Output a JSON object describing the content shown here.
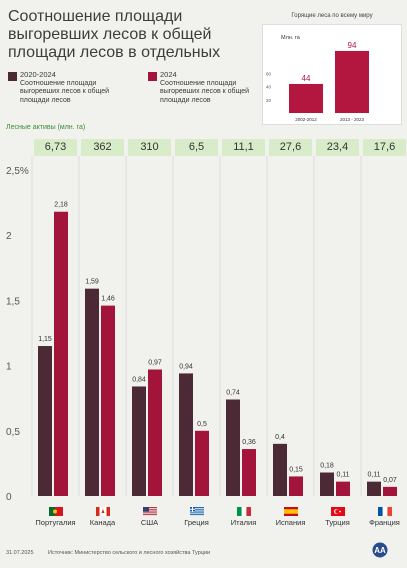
{
  "title": "Соотношение площади выгоревших лесов к общей площади лесов в отдельных",
  "legend": [
    {
      "name": "2020-2024",
      "desc": "Соотношение площади выгоревших лесов к общей площади лесов",
      "color": "#4b2a36"
    },
    {
      "name": "2024",
      "desc": "Соотношение площади выгоревших лесов к общей площади лесов",
      "color": "#a3143b"
    }
  ],
  "inset": {
    "title": "Горящие леса по всему миру",
    "unit": "Млн. га",
    "ticks": [
      "60",
      "40",
      "20"
    ],
    "categories": [
      "2002-2012",
      "2013 - 2023"
    ],
    "values": [
      44,
      94
    ],
    "value_labels": [
      "44",
      "94"
    ],
    "color": "#b3173f"
  },
  "assets": {
    "label": "Лесные активы (млн. га)",
    "values": [
      "6,73",
      "362",
      "310",
      "6,5",
      "11,1",
      "27,6",
      "23,4",
      "17,6"
    ]
  },
  "chart_data": {
    "type": "bar",
    "categories": [
      "Португалия",
      "Канада",
      "США",
      "Греция",
      "Италия",
      "Испания",
      "Турция",
      "Франция"
    ],
    "series": [
      {
        "name": "2020-2024",
        "values": [
          1.15,
          1.59,
          0.84,
          0.94,
          0.74,
          0.4,
          0.18,
          0.11
        ],
        "labels": [
          "1,15",
          "1,59",
          "0,84",
          "0,94",
          "0,74",
          "0,4",
          "0,18",
          "0,11"
        ],
        "color": "#4b2a36"
      },
      {
        "name": "2024",
        "values": [
          2.18,
          1.46,
          0.97,
          0.5,
          0.36,
          0.15,
          0.11,
          0.07
        ],
        "labels": [
          "2,18",
          "1,46",
          "0,97",
          "0,5",
          "0,36",
          "0,15",
          "0,11",
          "0,07"
        ],
        "color": "#a3143b"
      }
    ],
    "ylim": [
      0,
      2.5
    ],
    "yticks": [
      0,
      0.5,
      1,
      1.5,
      2,
      2.5
    ],
    "ytick_labels": [
      "0",
      "0,5",
      "1",
      "1,5",
      "2",
      "2,5%"
    ]
  },
  "footer": {
    "date": "31.07.2025",
    "source": "Источник: Министерство сельского и лесного хозяйства Турции",
    "logo_text": "AA"
  }
}
